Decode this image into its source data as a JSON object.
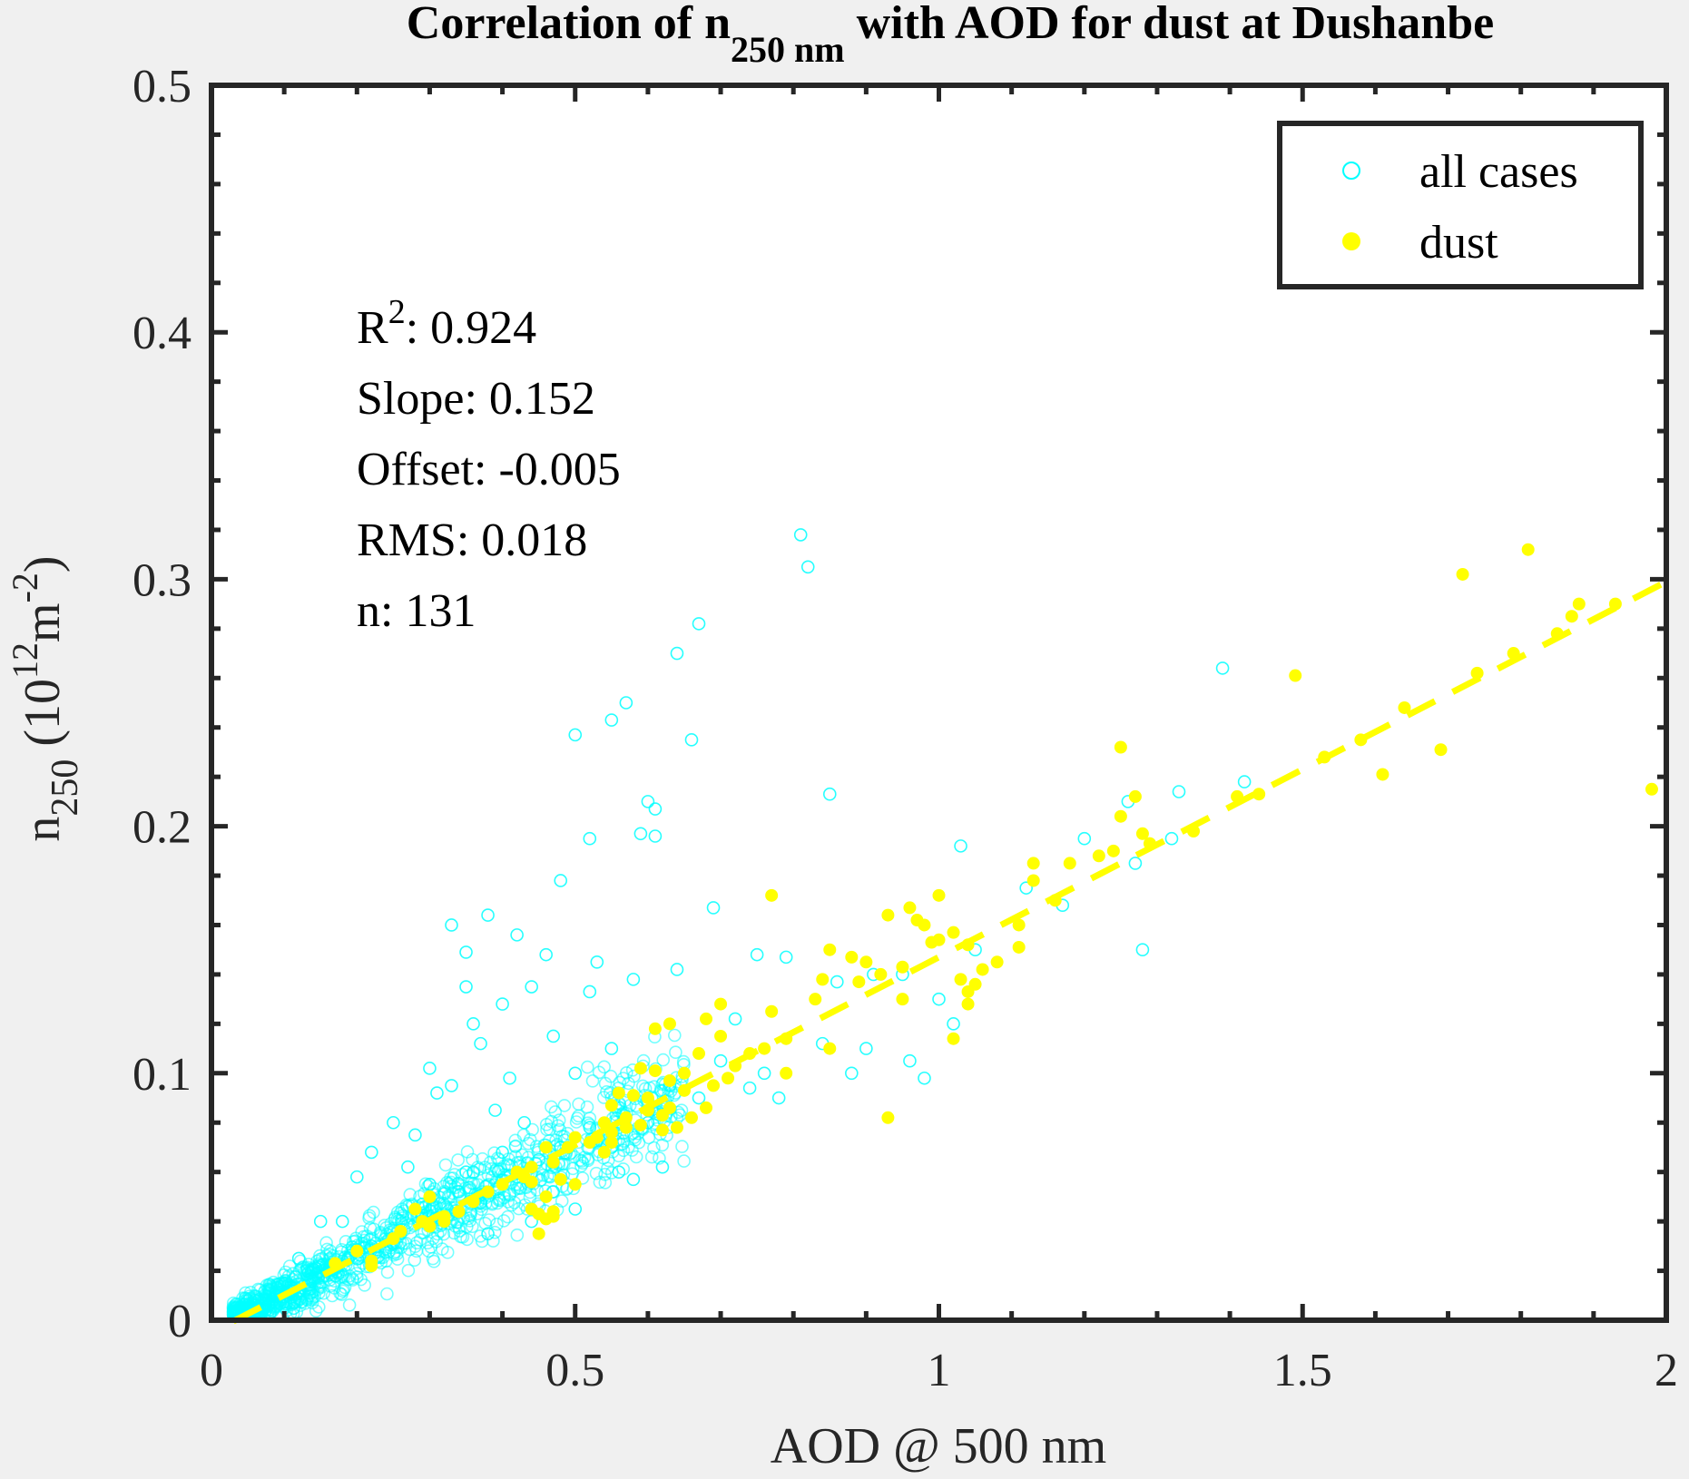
{
  "colors": {
    "background": "#f0f0f0",
    "plot_bg": "#ffffff",
    "all_cases": "#00ffff",
    "dust": "#ffff00",
    "fit_line": "#ffff00",
    "axes": "#262626"
  },
  "chart_data": {
    "type": "scatter",
    "title": {
      "prefix": "Correlation of n",
      "sub": "250 nm",
      "suffix": " with AOD for dust at Dushanbe"
    },
    "xlabel": "AOD @ 500 nm",
    "ylabel": {
      "base": "n",
      "sub": "250",
      "rest_open": " (10",
      "sup1": "12",
      "mid": "m",
      "sup2": "-2",
      "rest_close": ")"
    },
    "xlim": [
      0,
      2
    ],
    "ylim": [
      0,
      0.5
    ],
    "x_ticks": [
      0,
      0.5,
      1,
      1.5,
      2
    ],
    "x_tick_labels": [
      "0",
      "0.5",
      "1",
      "1.5",
      "2"
    ],
    "y_ticks": [
      0,
      0.1,
      0.2,
      0.3,
      0.4,
      0.5
    ],
    "y_tick_labels": [
      "0",
      "0.1",
      "0.2",
      "0.3",
      "0.4",
      "0.5"
    ],
    "grid": false,
    "legend": {
      "placement": "top-right",
      "entries": [
        "all cases",
        "dust"
      ]
    },
    "stats": {
      "r2_label": "R",
      "r2_sup": "2",
      "r2_value": ": 0.924",
      "slope": "Slope: 0.152",
      "offset": "Offset: -0.005",
      "rms": "RMS: 0.018",
      "n": "n:  131"
    },
    "fit": {
      "slope": 0.152,
      "offset": -0.005,
      "x_range": [
        0.03,
        2.0
      ]
    },
    "series": [
      {
        "name": "all cases",
        "marker": "open-circle",
        "points": [
          [
            0.81,
            0.318
          ],
          [
            0.82,
            0.305
          ],
          [
            0.67,
            0.282
          ],
          [
            0.64,
            0.27
          ],
          [
            0.57,
            0.25
          ],
          [
            0.55,
            0.243
          ],
          [
            0.5,
            0.237
          ],
          [
            0.66,
            0.235
          ],
          [
            0.85,
            0.213
          ],
          [
            0.6,
            0.21
          ],
          [
            0.61,
            0.207
          ],
          [
            0.59,
            0.197
          ],
          [
            0.61,
            0.196
          ],
          [
            0.52,
            0.195
          ],
          [
            0.48,
            0.178
          ],
          [
            0.38,
            0.164
          ],
          [
            0.33,
            0.16
          ],
          [
            0.42,
            0.156
          ],
          [
            0.35,
            0.149
          ],
          [
            0.46,
            0.148
          ],
          [
            0.53,
            0.145
          ],
          [
            0.64,
            0.142
          ],
          [
            0.75,
            0.148
          ],
          [
            0.58,
            0.138
          ],
          [
            0.35,
            0.135
          ],
          [
            0.44,
            0.135
          ],
          [
            0.52,
            0.133
          ],
          [
            0.4,
            0.128
          ],
          [
            0.36,
            0.12
          ],
          [
            0.37,
            0.112
          ],
          [
            0.47,
            0.115
          ],
          [
            0.55,
            0.11
          ],
          [
            0.3,
            0.102
          ],
          [
            0.33,
            0.095
          ],
          [
            0.41,
            0.098
          ],
          [
            0.5,
            0.1
          ],
          [
            0.63,
            0.095
          ],
          [
            0.67,
            0.09
          ],
          [
            0.74,
            0.094
          ],
          [
            0.78,
            0.09
          ],
          [
            0.88,
            0.1
          ],
          [
            0.96,
            0.105
          ],
          [
            0.98,
            0.098
          ],
          [
            0.91,
            0.14
          ],
          [
            0.95,
            0.14
          ],
          [
            1.02,
            0.12
          ],
          [
            1.03,
            0.192
          ],
          [
            1.17,
            0.168
          ],
          [
            1.2,
            0.195
          ],
          [
            1.26,
            0.21
          ],
          [
            1.28,
            0.15
          ],
          [
            1.33,
            0.214
          ],
          [
            1.39,
            0.264
          ],
          [
            1.42,
            0.218
          ],
          [
            1.32,
            0.195
          ],
          [
            1.27,
            0.185
          ],
          [
            0.69,
            0.167
          ],
          [
            0.79,
            0.147
          ],
          [
            0.86,
            0.137
          ],
          [
            0.72,
            0.122
          ],
          [
            0.7,
            0.105
          ],
          [
            0.25,
            0.08
          ],
          [
            0.28,
            0.075
          ],
          [
            0.22,
            0.068
          ],
          [
            0.27,
            0.062
          ],
          [
            0.35,
            0.06
          ],
          [
            0.45,
            0.065
          ],
          [
            0.55,
            0.07
          ],
          [
            0.62,
            0.062
          ],
          [
            0.6,
            0.08
          ],
          [
            0.47,
            0.052
          ],
          [
            0.5,
            0.045
          ],
          [
            0.44,
            0.04
          ],
          [
            0.38,
            0.035
          ],
          [
            0.56,
            0.06
          ],
          [
            0.58,
            0.057
          ],
          [
            0.31,
            0.092
          ],
          [
            0.39,
            0.085
          ],
          [
            0.43,
            0.08
          ],
          [
            0.2,
            0.058
          ],
          [
            0.18,
            0.04
          ],
          [
            0.15,
            0.04
          ],
          [
            0.12,
            0.025
          ],
          [
            0.1,
            0.015
          ],
          [
            0.08,
            0.012
          ],
          [
            0.06,
            0.008
          ],
          [
            0.05,
            0.006
          ],
          [
            0.9,
            0.11
          ],
          [
            1.0,
            0.13
          ],
          [
            1.05,
            0.15
          ],
          [
            1.12,
            0.175
          ],
          [
            0.84,
            0.112
          ],
          [
            0.76,
            0.1
          ],
          [
            0.29,
            0.047
          ],
          [
            0.32,
            0.04
          ],
          [
            0.26,
            0.035
          ],
          [
            0.22,
            0.03
          ],
          [
            0.34,
            0.052
          ],
          [
            0.42,
            0.058
          ],
          [
            0.48,
            0.07
          ],
          [
            0.52,
            0.078
          ],
          [
            0.4,
            0.068
          ],
          [
            0.36,
            0.06
          ],
          [
            0.3,
            0.055
          ]
        ]
      },
      {
        "name": "dust",
        "marker": "filled-circle",
        "points": [
          [
            1.81,
            0.312
          ],
          [
            1.72,
            0.302
          ],
          [
            1.88,
            0.29
          ],
          [
            1.87,
            0.285
          ],
          [
            1.49,
            0.261
          ],
          [
            1.25,
            0.232
          ],
          [
            1.69,
            0.231
          ],
          [
            1.61,
            0.221
          ],
          [
            1.98,
            0.215
          ],
          [
            1.44,
            0.213
          ],
          [
            1.27,
            0.212
          ],
          [
            1.25,
            0.204
          ],
          [
            1.28,
            0.197
          ],
          [
            1.29,
            0.193
          ],
          [
            1.24,
            0.19
          ],
          [
            1.18,
            0.185
          ],
          [
            1.13,
            0.185
          ],
          [
            1.13,
            0.178
          ],
          [
            1.0,
            0.172
          ],
          [
            0.96,
            0.167
          ],
          [
            0.93,
            0.164
          ],
          [
            0.97,
            0.162
          ],
          [
            0.98,
            0.16
          ],
          [
            1.11,
            0.16
          ],
          [
            1.02,
            0.157
          ],
          [
            1.0,
            0.154
          ],
          [
            1.04,
            0.152
          ],
          [
            0.99,
            0.153
          ],
          [
            1.11,
            0.151
          ],
          [
            0.85,
            0.15
          ],
          [
            0.88,
            0.147
          ],
          [
            0.9,
            0.145
          ],
          [
            0.95,
            0.143
          ],
          [
            1.06,
            0.142
          ],
          [
            1.03,
            0.138
          ],
          [
            0.84,
            0.138
          ],
          [
            0.89,
            0.137
          ],
          [
            1.05,
            0.136
          ],
          [
            1.04,
            0.133
          ],
          [
            0.95,
            0.13
          ],
          [
            1.04,
            0.128
          ],
          [
            0.77,
            0.172
          ],
          [
            0.7,
            0.128
          ],
          [
            0.77,
            0.125
          ],
          [
            0.68,
            0.122
          ],
          [
            0.61,
            0.118
          ],
          [
            0.63,
            0.12
          ],
          [
            0.7,
            0.115
          ],
          [
            1.02,
            0.114
          ],
          [
            0.79,
            0.114
          ],
          [
            0.76,
            0.11
          ],
          [
            0.85,
            0.11
          ],
          [
            0.67,
            0.108
          ],
          [
            0.72,
            0.103
          ],
          [
            0.59,
            0.102
          ],
          [
            0.61,
            0.101
          ],
          [
            0.79,
            0.1
          ],
          [
            0.63,
            0.097
          ],
          [
            0.65,
            0.093
          ],
          [
            0.58,
            0.091
          ],
          [
            0.56,
            0.092
          ],
          [
            0.68,
            0.086
          ],
          [
            0.55,
            0.087
          ],
          [
            0.6,
            0.085
          ],
          [
            0.62,
            0.083
          ],
          [
            0.66,
            0.082
          ],
          [
            0.54,
            0.08
          ],
          [
            0.59,
            0.079
          ],
          [
            0.93,
            0.082
          ],
          [
            0.57,
            0.078
          ],
          [
            0.64,
            0.078
          ],
          [
            0.62,
            0.077
          ],
          [
            0.55,
            0.076
          ],
          [
            0.53,
            0.074
          ],
          [
            0.5,
            0.074
          ],
          [
            0.49,
            0.07
          ],
          [
            0.46,
            0.07
          ],
          [
            0.54,
            0.068
          ],
          [
            0.47,
            0.064
          ],
          [
            0.44,
            0.062
          ],
          [
            0.42,
            0.06
          ],
          [
            0.43,
            0.058
          ],
          [
            0.48,
            0.057
          ],
          [
            0.44,
            0.056
          ],
          [
            0.5,
            0.055
          ],
          [
            0.46,
            0.05
          ],
          [
            0.44,
            0.045
          ],
          [
            0.47,
            0.044
          ],
          [
            0.45,
            0.043
          ],
          [
            0.46,
            0.041
          ],
          [
            0.3,
            0.05
          ],
          [
            0.28,
            0.045
          ],
          [
            0.29,
            0.04
          ],
          [
            0.3,
            0.038
          ],
          [
            0.32,
            0.04
          ],
          [
            0.45,
            0.035
          ],
          [
            0.17,
            0.023
          ],
          [
            0.22,
            0.024
          ],
          [
            0.22,
            0.022
          ],
          [
            0.47,
            0.042
          ],
          [
            0.52,
            0.072
          ],
          [
            0.6,
            0.09
          ],
          [
            0.65,
            0.1
          ],
          [
            0.74,
            0.108
          ],
          [
            0.38,
            0.052
          ],
          [
            0.4,
            0.055
          ],
          [
            0.36,
            0.048
          ],
          [
            0.26,
            0.036
          ],
          [
            0.34,
            0.044
          ],
          [
            0.25,
            0.033
          ],
          [
            0.2,
            0.028
          ],
          [
            0.32,
            0.042
          ],
          [
            0.57,
            0.082
          ],
          [
            0.69,
            0.095
          ],
          [
            0.83,
            0.13
          ],
          [
            0.92,
            0.14
          ],
          [
            1.08,
            0.145
          ],
          [
            1.16,
            0.17
          ],
          [
            1.22,
            0.188
          ],
          [
            1.35,
            0.198
          ],
          [
            1.41,
            0.212
          ],
          [
            1.53,
            0.228
          ],
          [
            1.58,
            0.235
          ],
          [
            1.64,
            0.248
          ],
          [
            1.74,
            0.262
          ],
          [
            1.79,
            0.27
          ],
          [
            1.85,
            0.278
          ],
          [
            1.93,
            0.29
          ],
          [
            0.55,
            0.072
          ],
          [
            0.63,
            0.086
          ],
          [
            0.71,
            0.098
          ]
        ]
      }
    ]
  }
}
